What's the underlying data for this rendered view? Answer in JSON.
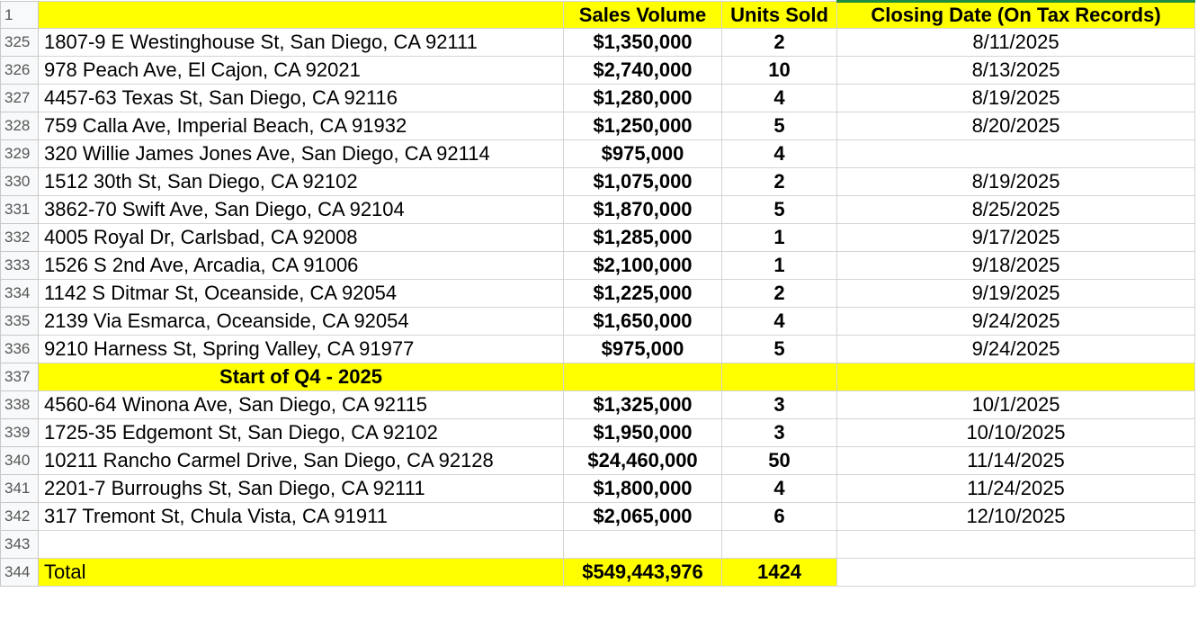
{
  "header": {
    "row_number": "1",
    "col_b": "Sales Volume",
    "col_c": "Units Sold",
    "col_d": "Closing Date (On Tax Records)"
  },
  "rows": [
    {
      "num": "325",
      "address": "1807-9 E Westinghouse St, San Diego, CA 92111",
      "sales": "$1,350,000",
      "units": "2",
      "date": "8/11/2025"
    },
    {
      "num": "326",
      "address": "978 Peach Ave, El Cajon, CA 92021",
      "sales": "$2,740,000",
      "units": "10",
      "date": "8/13/2025"
    },
    {
      "num": "327",
      "address": "4457-63 Texas St, San Diego, CA 92116",
      "sales": "$1,280,000",
      "units": "4",
      "date": "8/19/2025"
    },
    {
      "num": "328",
      "address": "759 Calla Ave, Imperial Beach, CA 91932",
      "sales": "$1,250,000",
      "units": "5",
      "date": "8/20/2025"
    },
    {
      "num": "329",
      "address": "320 Willie James Jones Ave, San Diego, CA 92114",
      "sales": "$975,000",
      "units": "4",
      "date": ""
    },
    {
      "num": "330",
      "address": "1512 30th St, San Diego, CA 92102",
      "sales": "$1,075,000",
      "units": "2",
      "date": "8/19/2025"
    },
    {
      "num": "331",
      "address": "3862-70 Swift Ave, San Diego, CA 92104",
      "sales": "$1,870,000",
      "units": "5",
      "date": "8/25/2025"
    },
    {
      "num": "332",
      "address": "4005 Royal Dr, Carlsbad, CA 92008",
      "sales": "$1,285,000",
      "units": "1",
      "date": "9/17/2025"
    },
    {
      "num": "333",
      "address": "1526 S 2nd Ave, Arcadia, CA 91006",
      "sales": "$2,100,000",
      "units": "1",
      "date": "9/18/2025"
    },
    {
      "num": "334",
      "address": "1142 S Ditmar St, Oceanside, CA 92054",
      "sales": "$1,225,000",
      "units": "2",
      "date": "9/19/2025"
    },
    {
      "num": "335",
      "address": "2139 Via Esmarca, Oceanside, CA 92054",
      "sales": "$1,650,000",
      "units": "4",
      "date": "9/24/2025"
    },
    {
      "num": "336",
      "address": "9210 Harness St, Spring Valley, CA 91977",
      "sales": "$975,000",
      "units": "5",
      "date": "9/24/2025"
    }
  ],
  "q4_row": {
    "num": "337",
    "label": "Start of Q4 - 2025"
  },
  "rows_q4": [
    {
      "num": "338",
      "address": "4560-64 Winona Ave, San Diego, CA 92115",
      "sales": "$1,325,000",
      "units": "3",
      "date": "10/1/2025"
    },
    {
      "num": "339",
      "address": "1725-35 Edgemont St, San Diego, CA 92102",
      "sales": "$1,950,000",
      "units": "3",
      "date": "10/10/2025"
    },
    {
      "num": "340",
      "address": "10211 Rancho Carmel Drive, San Diego, CA 92128",
      "sales": "$24,460,000",
      "units": "50",
      "date": "11/14/2025"
    },
    {
      "num": "341",
      "address": "2201-7 Burroughs St, San Diego, CA 92111",
      "sales": "$1,800,000",
      "units": "4",
      "date": "11/24/2025"
    },
    {
      "num": "342",
      "address": "317 Tremont St, Chula Vista, CA 91911",
      "sales": "$2,065,000",
      "units": "6",
      "date": "12/10/2025"
    }
  ],
  "empty_row": {
    "num": "343"
  },
  "total_row": {
    "num": "344",
    "label": "Total",
    "sales": "$549,443,976",
    "units": "1424"
  },
  "colors": {
    "highlight": "#ffff00",
    "selection_border": "#1e8e3e",
    "gridline": "#d4d4d4"
  }
}
